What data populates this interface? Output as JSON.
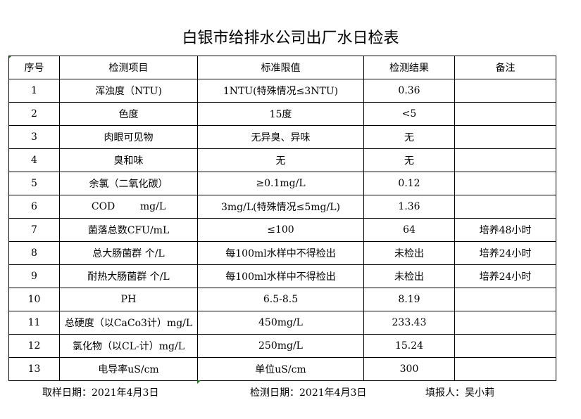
{
  "title": "白银市给排水公司出厂水日检表",
  "headers": [
    "序号",
    "检测项目",
    "标准限值",
    "检测结果",
    "备注"
  ],
  "rows": [
    [
      "1",
      "浑浊度（NTU)",
      "1NTU(特殊情况≤3NTU)",
      "0.36",
      ""
    ],
    [
      "2",
      "色度",
      "15度",
      "<5",
      ""
    ],
    [
      "3",
      "肉眼可见物",
      "无异臭、异味",
      "无",
      ""
    ],
    [
      "4",
      "臭和味",
      "无",
      "无",
      ""
    ],
    [
      "5",
      "余氯（二氧化碳）",
      "≥0.1mg/L",
      "0.12",
      ""
    ],
    [
      "6",
      "COD        mg/L",
      "3mg/L(特殊情况≤5mg/L)",
      "1.36",
      ""
    ],
    [
      "7",
      "菌落总数CFU/mL",
      "≤100",
      "64",
      "培养48小时"
    ],
    [
      "8",
      "总大肠菌群 个/L",
      "每100ml水样中不得检出",
      "未检出",
      "培养24小时"
    ],
    [
      "9",
      "耐热大肠菌群 个/L",
      "每100ml水样中不得检出",
      "未检出",
      "培养24小时"
    ],
    [
      "10",
      "PH",
      "6.5-8.5",
      "8.19",
      ""
    ],
    [
      "11",
      "总硬度（以CaCo3计）mg/L",
      "450mg/L",
      "233.43",
      ""
    ],
    [
      "12",
      "氯化物（以CL-计）mg/L",
      "250mg/L",
      "15.24",
      ""
    ],
    [
      "13",
      "电导率uS/cm",
      "单位uS/cm",
      "300",
      ""
    ]
  ],
  "footer": {
    "sample_date": "取样日期：2021年4月3日",
    "test_date": "检测日期：2021年4月3日",
    "reporter": "填报人：吴小莉"
  }
}
